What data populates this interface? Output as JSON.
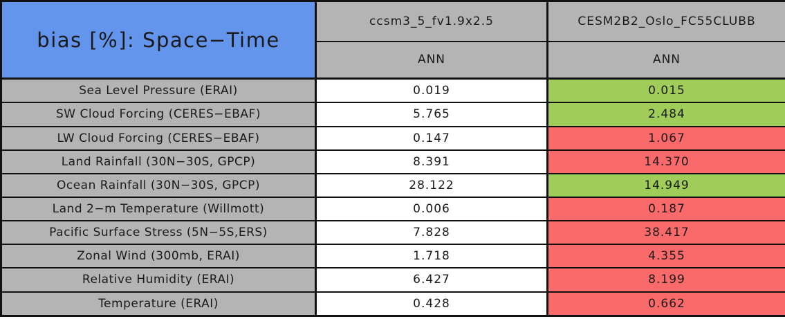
{
  "chart_data": {
    "type": "table",
    "title": "bias [%]: Space−Time",
    "columns": [
      {
        "model": "ccsm3_5_fv1.9x2.5",
        "season": "ANN"
      },
      {
        "model": "CESM2B2_Oslo_FC55CLUBB",
        "season": "ANN"
      }
    ],
    "rows": [
      {
        "label": "Sea Level Pressure (ERAI)",
        "values": [
          0.019,
          0.015
        ],
        "display": [
          "0.019",
          "0.015"
        ],
        "cell_colors": [
          "white",
          "green"
        ]
      },
      {
        "label": "SW Cloud Forcing (CERES−EBAF)",
        "values": [
          5.765,
          2.484
        ],
        "display": [
          "5.765",
          "2.484"
        ],
        "cell_colors": [
          "white",
          "green"
        ]
      },
      {
        "label": "LW Cloud Forcing (CERES−EBAF)",
        "values": [
          0.147,
          1.067
        ],
        "display": [
          "0.147",
          "1.067"
        ],
        "cell_colors": [
          "white",
          "red"
        ]
      },
      {
        "label": "Land Rainfall (30N−30S, GPCP)",
        "values": [
          8.391,
          14.37
        ],
        "display": [
          "8.391",
          "14.370"
        ],
        "cell_colors": [
          "white",
          "red"
        ]
      },
      {
        "label": "Ocean Rainfall (30N−30S, GPCP)",
        "values": [
          28.122,
          14.949
        ],
        "display": [
          "28.122",
          "14.949"
        ],
        "cell_colors": [
          "white",
          "green"
        ]
      },
      {
        "label": "Land 2−m Temperature (Willmott)",
        "values": [
          0.006,
          0.187
        ],
        "display": [
          "0.006",
          "0.187"
        ],
        "cell_colors": [
          "white",
          "red"
        ]
      },
      {
        "label": "Pacific Surface Stress (5N−5S,ERS)",
        "values": [
          7.828,
          38.417
        ],
        "display": [
          "7.828",
          "38.417"
        ],
        "cell_colors": [
          "white",
          "red"
        ]
      },
      {
        "label": "Zonal Wind (300mb, ERAI)",
        "values": [
          1.718,
          4.355
        ],
        "display": [
          "1.718",
          "4.355"
        ],
        "cell_colors": [
          "white",
          "red"
        ]
      },
      {
        "label": "Relative Humidity (ERAI)",
        "values": [
          6.427,
          8.199
        ],
        "display": [
          "6.427",
          "8.199"
        ],
        "cell_colors": [
          "white",
          "red"
        ]
      },
      {
        "label": "Temperature (ERAI)",
        "values": [
          0.428,
          0.662
        ],
        "display": [
          "0.428",
          "0.662"
        ],
        "cell_colors": [
          "white",
          "red"
        ]
      }
    ],
    "layout_hints": {
      "title_cell_spans_both_header_rows": true,
      "first_value_column_uncolored_reference": true
    }
  },
  "colors": {
    "title_background": "#6495ED",
    "header_background": "#B4B4B4",
    "label_background": "#B4B4B4",
    "value_background": "#FFFFFF",
    "improved_green": "#A0CC5A",
    "degraded_red": "#FB6A6A",
    "border": "#111111",
    "text": "#1A1A1A"
  }
}
